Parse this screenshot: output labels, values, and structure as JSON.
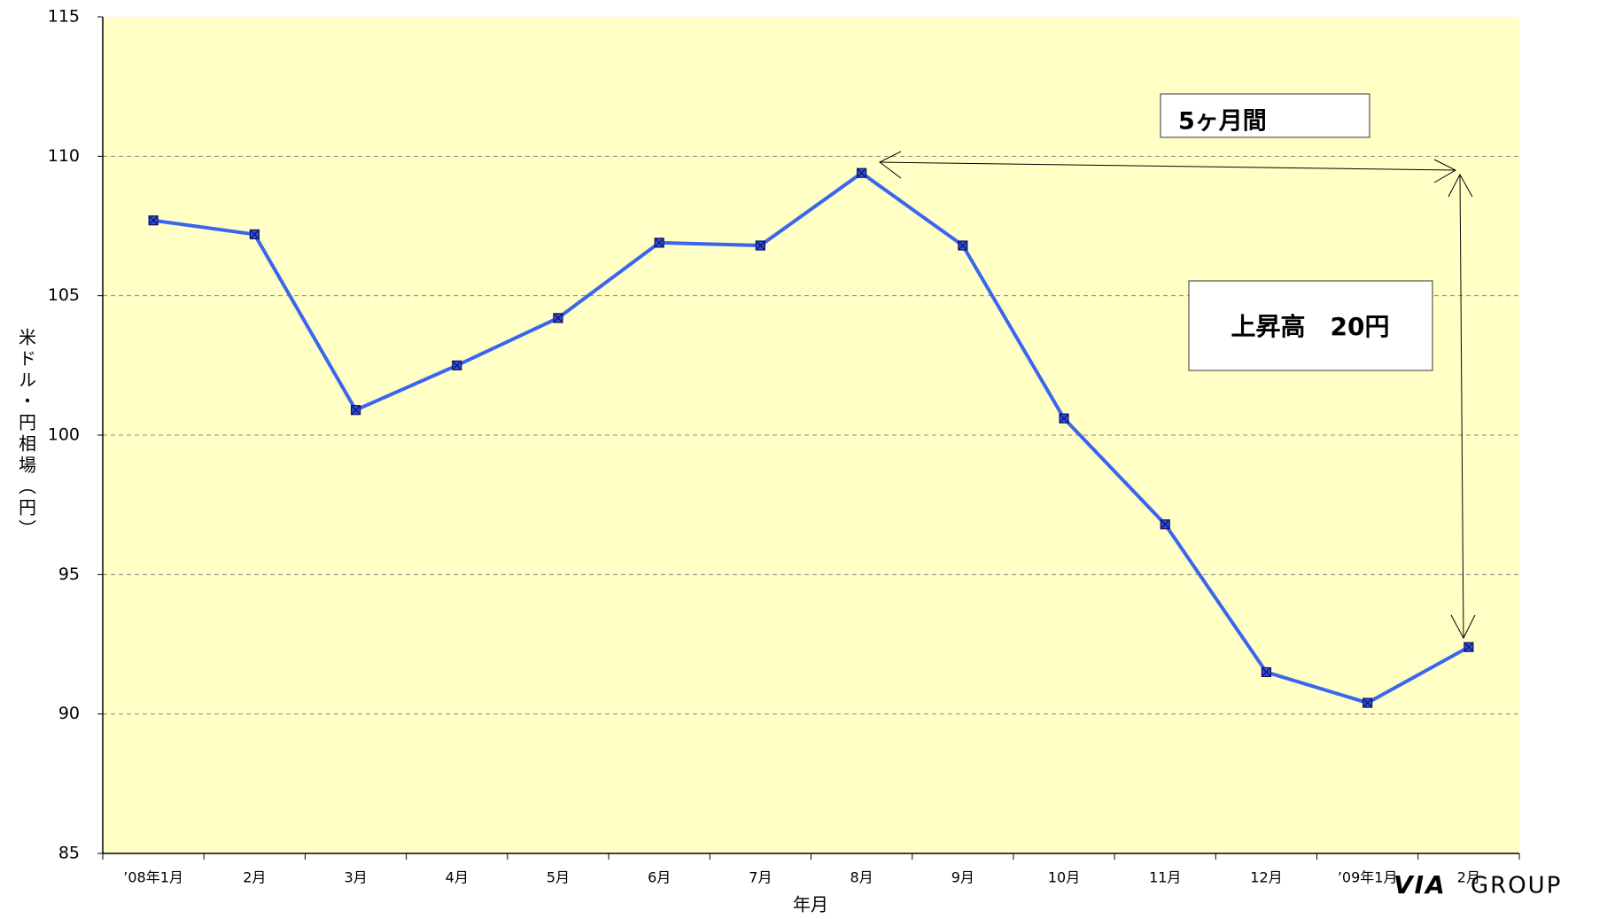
{
  "chart_data": {
    "type": "line",
    "y_label": "米ドル・円相場（円）",
    "x_label": "年月",
    "categories": [
      "’08年1月",
      "2月",
      "3月",
      "4月",
      "5月",
      "6月",
      "7月",
      "8月",
      "9月",
      "10月",
      "11月",
      "12月",
      "’09年1月",
      "2月"
    ],
    "series": [
      {
        "color": "#3a66ee",
        "values": [
          107.7,
          107.2,
          100.9,
          102.5,
          104.2,
          106.9,
          106.8,
          109.4,
          106.8,
          100.6,
          96.8,
          91.5,
          90.4,
          92.4
        ]
      }
    ],
    "ylim": [
      85,
      115
    ],
    "yticks": [
      85,
      90,
      95,
      100,
      105,
      110,
      115
    ],
    "grid": true,
    "annotations": [
      "5ヶ月間",
      "上昇高　20円"
    ]
  },
  "logo": {
    "mark": "VIA",
    "text": "GROUP"
  }
}
